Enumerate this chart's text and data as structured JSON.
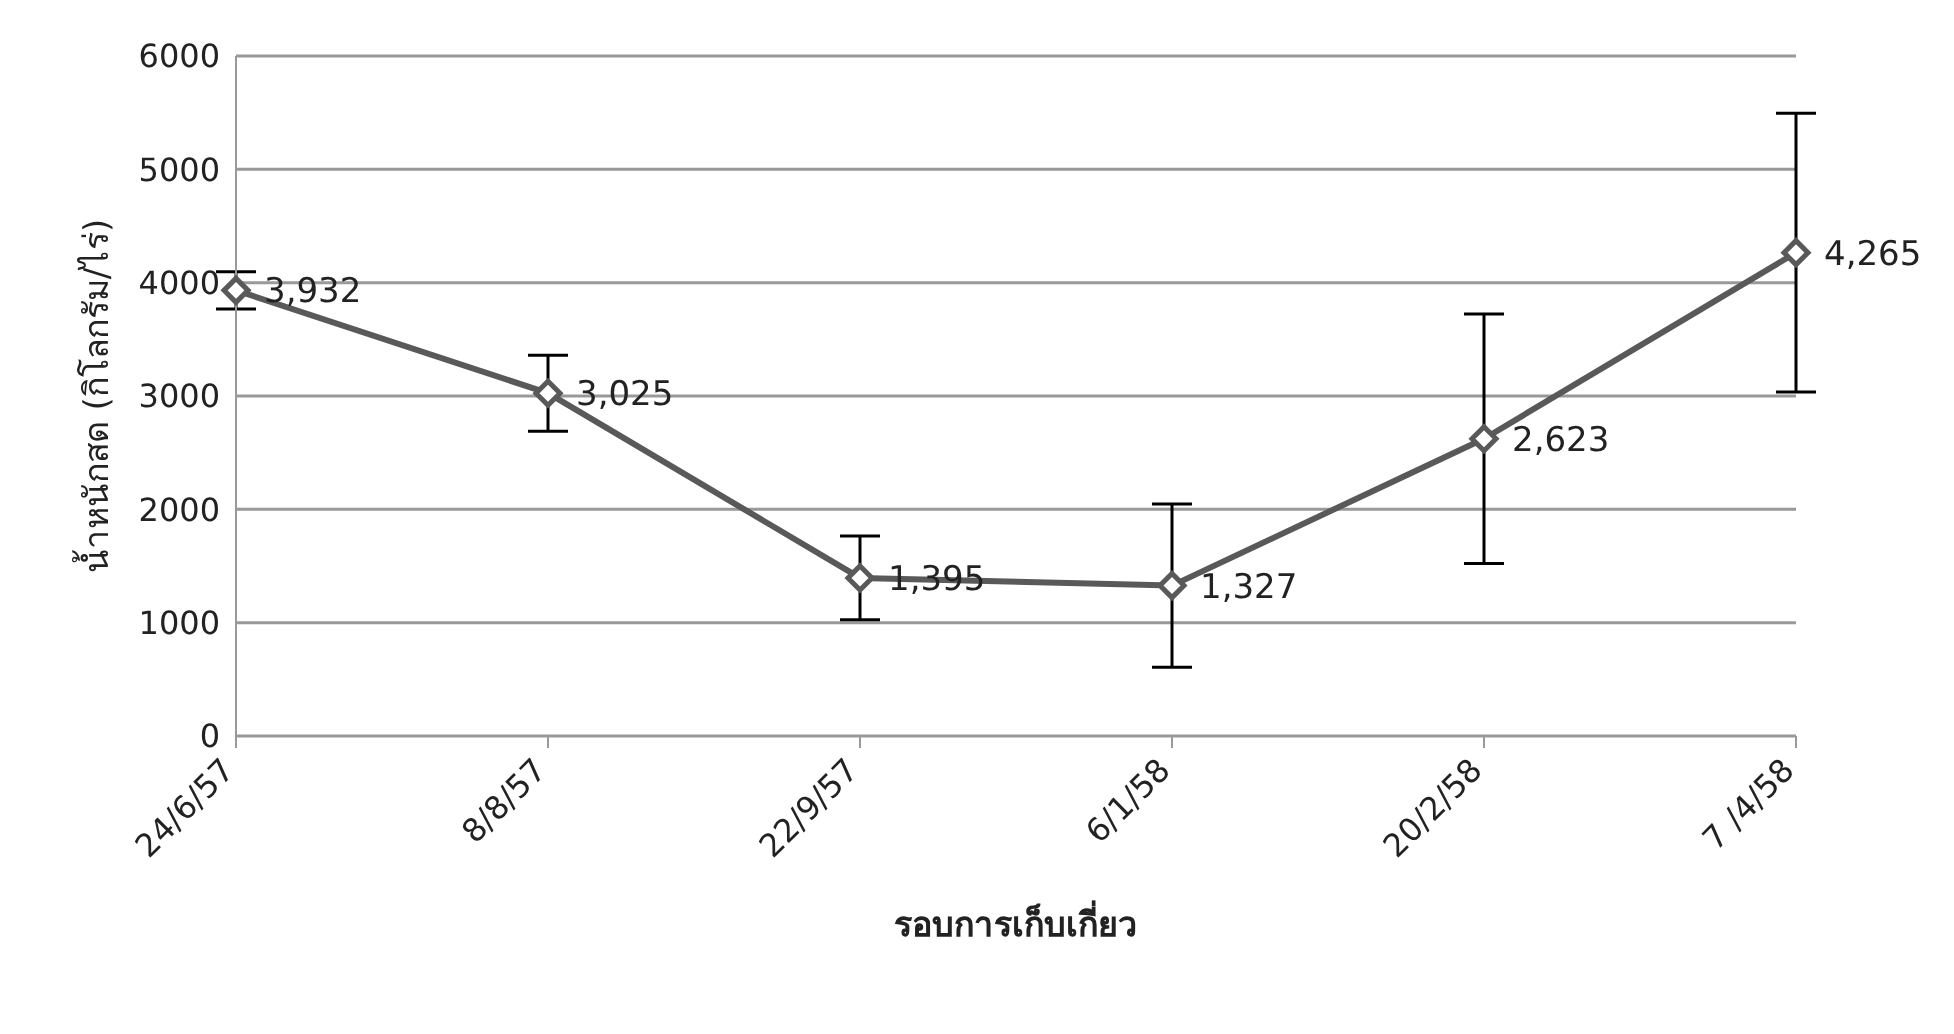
{
  "chart_data": {
    "type": "line",
    "xlabel": "รอบการเก็บเกี่ยว",
    "ylabel": "น้ำหนักสด (กิโลกรัม/ไร่)",
    "categories": [
      "24/6/57",
      "8/8/57",
      "22/9/57",
      "6/1/58",
      "20/2/58",
      "7 /4/58"
    ],
    "series": [
      {
        "color": "#595959",
        "values": [
          3932,
          3025,
          1395,
          1327,
          2623,
          4265
        ],
        "errors": [
          165,
          335,
          370,
          720,
          1100,
          1230
        ],
        "value_labels": [
          "3,932",
          "3,025",
          "1,395",
          "1,327",
          "2,623",
          "4,265"
        ]
      }
    ],
    "ylim": [
      0,
      6000
    ],
    "yticks": [
      0,
      1000,
      2000,
      3000,
      4000,
      5000,
      6000
    ],
    "grid": "y",
    "marker": "diamond",
    "line_style": "solid",
    "legend": false
  }
}
